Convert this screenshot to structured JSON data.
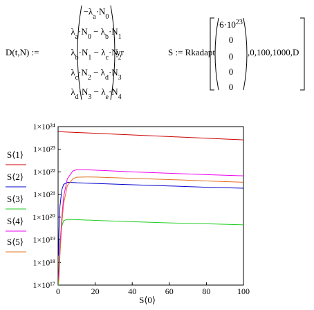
{
  "formulas": {
    "d_def": {
      "lhs": "D(t,N) :=",
      "unit": "yr",
      "entries": [
        [
          {
            "t": "−λ",
            "sub": "a"
          },
          {
            "t": "·N",
            "sub": "0"
          }
        ],
        [
          {
            "t": "λ",
            "sub": "a"
          },
          {
            "t": "·N",
            "sub": "0"
          },
          {
            "t": " − λ",
            "sub": "b"
          },
          {
            "t": "·N",
            "sub": "1"
          }
        ],
        [
          {
            "t": "λ",
            "sub": "b"
          },
          {
            "t": "·N",
            "sub": "1"
          },
          {
            "t": " − λ",
            "sub": "c"
          },
          {
            "t": "·N",
            "sub": "2"
          }
        ],
        [
          {
            "t": "λ",
            "sub": "c"
          },
          {
            "t": "·N",
            "sub": "2"
          },
          {
            "t": " − λ",
            "sub": "d"
          },
          {
            "t": "·N",
            "sub": "3"
          }
        ],
        [
          {
            "t": "λ",
            "sub": "d"
          },
          {
            "t": "·N",
            "sub": "3"
          },
          {
            "t": " − λ",
            "sub": "e"
          },
          {
            "t": "·N",
            "sub": "4"
          }
        ]
      ]
    },
    "s_def": {
      "lhs": "S := Rkadapt",
      "args": ",0,100,1000,D",
      "entries": [
        [
          {
            "t": "6·10",
            "sup": "23"
          }
        ],
        [
          {
            "t": "0"
          }
        ],
        [
          {
            "t": "0"
          }
        ],
        [
          {
            "t": "0"
          }
        ],
        [
          {
            "t": "0"
          }
        ]
      ]
    }
  },
  "chart_data": {
    "type": "line",
    "x_label": "S⟨0⟩",
    "log_y": true,
    "grid": false,
    "xlim": [
      0,
      100
    ],
    "xticks": [
      0,
      20,
      40,
      60,
      80,
      100
    ],
    "ylim": [
      1e+17,
      1e+24
    ],
    "yticks": [
      {
        "value": 1e+17,
        "label": "1×10¹⁷"
      },
      {
        "value": 1e+18,
        "label": "1×10¹⁸"
      },
      {
        "value": 1e+19,
        "label": "1×10¹⁹"
      },
      {
        "value": 1e+20,
        "label": "1×10²⁰"
      },
      {
        "value": 1e+21,
        "label": "1×10²¹"
      },
      {
        "value": 1e+22,
        "label": "1×10²²"
      },
      {
        "value": 1e+23,
        "label": "1×10²³"
      },
      {
        "value": 1e+24,
        "label": "1×10²⁴"
      }
    ],
    "x": [
      0.2,
      0.5,
      1,
      2,
      3,
      5,
      8,
      10,
      15,
      20,
      40,
      60,
      80,
      100
    ],
    "series": [
      {
        "name": "S⟨1⟩",
        "color": "#cc0000",
        "values": [
          5.99e+23,
          5.97e+23,
          5.95e+23,
          5.9e+23,
          5.85e+23,
          5.75e+23,
          5.6e+23,
          5.5e+23,
          5.3e+23,
          5.07e+23,
          4.3e+23,
          3.63e+23,
          3.07e+23,
          2.6e+23
        ]
      },
      {
        "name": "S⟨2⟩",
        "color": "#0000cc",
        "values": [
          2e+18,
          3e+19,
          3e+20,
          1.6e+21,
          2.8e+21,
          3.5e+21,
          3.4e+21,
          3.3e+21,
          3.2e+21,
          3.1e+21,
          2.7e+21,
          2.4e+21,
          2.1e+21,
          1.9e+21
        ]
      },
      {
        "name": "S⟨3⟩",
        "color": "#22cc22",
        "values": [
          1e+17,
          1e+18,
          8e+18,
          4e+19,
          7e+19,
          8e+19,
          7.9e+19,
          7.8e+19,
          7.5e+19,
          7.2e+19,
          6.3e+19,
          5.6e+19,
          5.1e+19,
          4.6e+19
        ]
      },
      {
        "name": "S⟨4⟩",
        "color": "#ee00ee",
        "values": [
          2e+17,
          5e+17,
          5e+18,
          1e+20,
          8e+20,
          5e+21,
          1.1e+22,
          1.25e+22,
          1.25e+22,
          1.2e+22,
          1e+22,
          8.7e+21,
          7.6e+21,
          6.7e+21
        ]
      },
      {
        "name": "S⟨5⟩",
        "color": "#e07020",
        "values": [
          1.2e+17,
          2e+17,
          2e+18,
          5e+19,
          4e+20,
          2.5e+21,
          5e+21,
          5.8e+21,
          6e+21,
          5.9e+21,
          5.2e+21,
          4.6e+21,
          4e+21,
          3.5e+21
        ]
      }
    ]
  }
}
